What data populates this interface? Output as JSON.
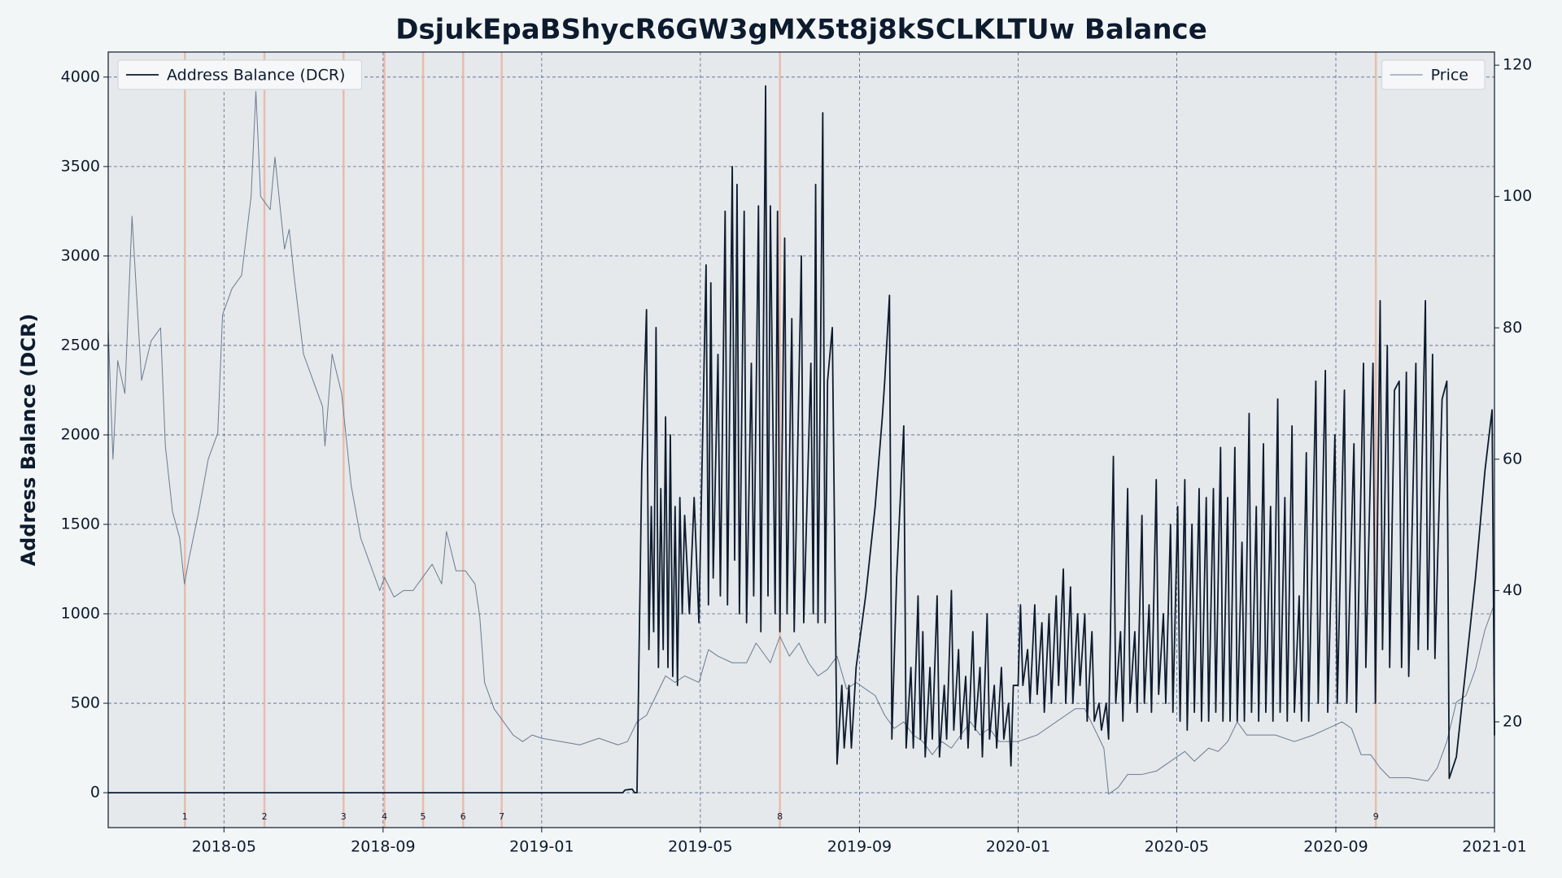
{
  "chart_data": {
    "type": "line",
    "title": "DsjukEpaBShycR6GW3gMX5t8j8kSCLKLTUw Balance",
    "ylabel": "Address Balance (DCR)",
    "xlim": [
      2018.09,
      2021.0
    ],
    "xticks": [
      {
        "value": 2018.333,
        "label": "2018-05"
      },
      {
        "value": 2018.667,
        "label": "2018-09"
      },
      {
        "value": 2019.0,
        "label": "2019-01"
      },
      {
        "value": 2019.333,
        "label": "2019-05"
      },
      {
        "value": 2019.667,
        "label": "2019-09"
      },
      {
        "value": 2020.0,
        "label": "2020-01"
      },
      {
        "value": 2020.333,
        "label": "2020-05"
      },
      {
        "value": 2020.667,
        "label": "2020-09"
      },
      {
        "value": 2021.0,
        "label": "2021-01"
      }
    ],
    "ylim": [
      -195,
      4140
    ],
    "yticks": [
      0,
      500,
      1000,
      1500,
      2000,
      2500,
      3000,
      3500,
      4000
    ],
    "y2lim": [
      3.9,
      122
    ],
    "y2ticks": [
      20,
      40,
      60,
      80,
      100,
      120
    ],
    "grid": true,
    "legend": "upper left",
    "legend2": "upper right",
    "events": [
      {
        "x": 2018.251,
        "label": "1"
      },
      {
        "x": 2018.418,
        "label": "2"
      },
      {
        "x": 2018.584,
        "label": "3"
      },
      {
        "x": 2018.67,
        "label": "4"
      },
      {
        "x": 2018.751,
        "label": "5"
      },
      {
        "x": 2018.835,
        "label": "6"
      },
      {
        "x": 2018.916,
        "label": "7"
      },
      {
        "x": 2019.5,
        "label": "8"
      },
      {
        "x": 2020.751,
        "label": "9"
      }
    ],
    "event_color": "#e9b8a6",
    "series": [
      {
        "name": "Address Balance (DCR)",
        "color": "#0d1b2e",
        "axis": "y",
        "x": [
          2018.09,
          2019.17,
          2019.175,
          2019.19,
          2019.195,
          2019.2,
          2019.21,
          2019.22,
          2019.225,
          2019.23,
          2019.235,
          2019.24,
          2019.245,
          2019.25,
          2019.255,
          2019.26,
          2019.265,
          2019.27,
          2019.275,
          2019.28,
          2019.285,
          2019.29,
          2019.295,
          2019.3,
          2019.31,
          2019.32,
          2019.33,
          2019.345,
          2019.35,
          2019.355,
          2019.36,
          2019.37,
          2019.375,
          2019.385,
          2019.39,
          2019.4,
          2019.405,
          2019.41,
          2019.415,
          2019.425,
          2019.43,
          2019.44,
          2019.445,
          2019.455,
          2019.46,
          2019.47,
          2019.475,
          2019.48,
          2019.49,
          2019.495,
          2019.5,
          2019.51,
          2019.515,
          2019.525,
          2019.53,
          2019.545,
          2019.55,
          2019.565,
          2019.57,
          2019.575,
          2019.58,
          2019.59,
          2019.595,
          2019.6,
          2019.61,
          2019.62,
          2019.63,
          2019.635,
          2019.645,
          2019.65,
          2019.66,
          2019.68,
          2019.7,
          2019.715,
          2019.72,
          2019.73,
          2019.735,
          2019.745,
          2019.76,
          2019.765,
          2019.775,
          2019.78,
          2019.79,
          2019.795,
          2019.8,
          2019.805,
          2019.815,
          2019.82,
          2019.83,
          2019.835,
          2019.845,
          2019.85,
          2019.86,
          2019.865,
          2019.875,
          2019.88,
          2019.89,
          2019.895,
          2019.905,
          2019.91,
          2019.92,
          2019.925,
          2019.935,
          2019.94,
          2019.95,
          2019.955,
          2019.965,
          2019.97,
          2019.98,
          2019.985,
          2019.99,
          2020,
          2020.005,
          2020.01,
          2020.02,
          2020.025,
          2020.035,
          2020.04,
          2020.05,
          2020.055,
          2020.065,
          2020.07,
          2020.08,
          2020.085,
          2020.095,
          2020.1,
          2020.11,
          2020.115,
          2020.125,
          2020.13,
          2020.14,
          2020.145,
          2020.155,
          2020.16,
          2020.17,
          2020.175,
          2020.185,
          2020.19,
          2020.2,
          2020.205,
          2020.215,
          2020.22,
          2020.23,
          2020.235,
          2020.245,
          2020.25,
          2020.26,
          2020.265,
          2020.275,
          2020.28,
          2020.29,
          2020.295,
          2020.305,
          2020.31,
          2020.32,
          2020.325,
          2020.335,
          2020.34,
          2020.35,
          2020.355,
          2020.365,
          2020.37,
          2020.38,
          2020.385,
          2020.395,
          2020.4,
          2020.41,
          2020.415,
          2020.425,
          2020.43,
          2020.44,
          2020.445,
          2020.455,
          2020.46,
          2020.47,
          2020.475,
          2020.485,
          2020.49,
          2020.5,
          2020.505,
          2020.515,
          2020.52,
          2020.53,
          2020.535,
          2020.545,
          2020.55,
          2020.56,
          2020.565,
          2020.575,
          2020.58,
          2020.59,
          2020.595,
          2020.605,
          2020.61,
          2020.625,
          2020.63,
          2020.645,
          2020.65,
          2020.665,
          2020.67,
          2020.685,
          2020.69,
          2020.705,
          2020.71,
          2020.725,
          2020.73,
          2020.745,
          2020.75,
          2020.76,
          2020.765,
          2020.775,
          2020.78,
          2020.79,
          2020.8,
          2020.805,
          2020.815,
          2020.82,
          2020.835,
          2020.84,
          2020.855,
          2020.86,
          2020.87,
          2020.875,
          2020.89,
          2020.9,
          2020.905,
          2020.92,
          2020.94,
          2020.96,
          2020.98,
          2020.995,
          2021
        ],
        "values": [
          0,
          0,
          15,
          20,
          0,
          0,
          1800,
          2700,
          800,
          1600,
          900,
          2600,
          700,
          1700,
          800,
          2100,
          700,
          2000,
          650,
          1600,
          600,
          1650,
          1000,
          1550,
          1000,
          1650,
          950,
          2950,
          1050,
          2850,
          1200,
          2450,
          1100,
          3250,
          1050,
          3500,
          1300,
          3400,
          1000,
          3250,
          950,
          2400,
          1100,
          3280,
          900,
          3950,
          1100,
          3280,
          1000,
          3250,
          900,
          3100,
          1000,
          2650,
          900,
          3000,
          950,
          2400,
          1000,
          3400,
          950,
          3800,
          950,
          2300,
          2600,
          160,
          600,
          250,
          600,
          250,
          700,
          1100,
          1600,
          2100,
          2300,
          2780,
          300,
          1200,
          2050,
          250,
          700,
          250,
          1100,
          300,
          900,
          200,
          700,
          300,
          1100,
          200,
          600,
          300,
          1130,
          350,
          800,
          300,
          650,
          250,
          900,
          350,
          700,
          200,
          1000,
          300,
          600,
          250,
          700,
          300,
          500,
          150,
          600,
          600,
          1050,
          600,
          800,
          500,
          1050,
          550,
          950,
          450,
          1000,
          500,
          1100,
          600,
          1250,
          500,
          1150,
          500,
          1000,
          600,
          1000,
          400,
          900,
          400,
          500,
          350,
          500,
          300,
          1880,
          500,
          900,
          400,
          1700,
          500,
          900,
          450,
          1550,
          500,
          1050,
          450,
          1750,
          550,
          1000,
          500,
          1500,
          450,
          1600,
          400,
          1750,
          350,
          1500,
          450,
          1700,
          400,
          1650,
          400,
          1700,
          450,
          1930,
          400,
          1650,
          400,
          1930,
          400,
          1400,
          400,
          2120,
          450,
          1600,
          400,
          1950,
          450,
          1600,
          400,
          2200,
          450,
          1650,
          400,
          2050,
          450,
          1100,
          400,
          1900,
          400,
          2300,
          500,
          2360,
          450,
          2000,
          500,
          2250,
          500,
          1950,
          450,
          2400,
          700,
          2400,
          500,
          2750,
          800,
          2500,
          700,
          2250,
          2300,
          700,
          2350,
          650,
          2400,
          800,
          2750,
          800,
          2450,
          750,
          2200,
          2300,
          80,
          200,
          700,
          1200,
          1800,
          2140,
          320
        ]
      },
      {
        "name": "Price",
        "color": "#6b7b8f",
        "axis": "y2",
        "x": [
          2018.09,
          2018.1,
          2018.11,
          2018.125,
          2018.14,
          2018.16,
          2018.18,
          2018.2,
          2018.21,
          2018.225,
          2018.24,
          2018.25,
          2018.26,
          2018.28,
          2018.3,
          2018.32,
          2018.33,
          2018.35,
          2018.37,
          2018.39,
          2018.4,
          2018.41,
          2018.43,
          2018.44,
          2018.46,
          2018.47,
          2018.48,
          2018.5,
          2018.52,
          2018.54,
          2018.545,
          2018.56,
          2018.58,
          2018.6,
          2018.62,
          2018.64,
          2018.66,
          2018.67,
          2018.69,
          2018.71,
          2018.73,
          2018.75,
          2018.77,
          2018.79,
          2018.8,
          2018.82,
          2018.84,
          2018.86,
          2018.87,
          2018.88,
          2018.9,
          2018.92,
          2018.94,
          2018.96,
          2018.98,
          2019,
          2019.04,
          2019.08,
          2019.12,
          2019.16,
          2019.18,
          2019.2,
          2019.22,
          2019.24,
          2019.26,
          2019.28,
          2019.3,
          2019.33,
          2019.35,
          2019.37,
          2019.4,
          2019.43,
          2019.45,
          2019.48,
          2019.5,
          2019.52,
          2019.54,
          2019.56,
          2019.58,
          2019.6,
          2019.62,
          2019.64,
          2019.66,
          2019.68,
          2019.7,
          2019.72,
          2019.74,
          2019.76,
          2019.78,
          2019.8,
          2019.82,
          2019.84,
          2019.86,
          2019.88,
          2019.9,
          2019.92,
          2019.94,
          2019.96,
          2020,
          2020.04,
          2020.08,
          2020.1,
          2020.12,
          2020.14,
          2020.16,
          2020.18,
          2020.19,
          2020.21,
          2020.23,
          2020.26,
          2020.29,
          2020.32,
          2020.35,
          2020.37,
          2020.4,
          2020.42,
          2020.44,
          2020.46,
          2020.48,
          2020.5,
          2020.54,
          2020.58,
          2020.62,
          2020.65,
          2020.68,
          2020.7,
          2020.72,
          2020.74,
          2020.76,
          2020.78,
          2020.82,
          2020.86,
          2020.88,
          2020.9,
          2020.92,
          2020.94,
          2020.96,
          2020.98,
          2021
        ],
        "values": [
          80,
          60,
          75,
          70,
          97,
          72,
          78,
          80,
          62,
          52,
          48,
          41,
          45,
          52,
          60,
          64,
          82,
          86,
          88,
          100,
          116,
          100,
          98,
          106,
          92,
          95,
          88,
          76,
          72,
          68,
          62,
          76,
          70,
          56,
          48,
          44,
          40,
          42,
          39,
          40,
          40,
          42,
          44,
          41,
          49,
          43,
          43,
          41,
          36,
          26,
          22,
          20,
          18,
          17,
          18,
          17.5,
          17,
          16.5,
          17.5,
          16.5,
          17,
          20,
          21,
          24,
          27,
          26,
          27,
          26,
          31,
          30,
          29,
          29,
          32,
          29,
          33,
          30,
          32,
          29,
          27,
          28,
          30,
          25,
          26,
          25,
          24,
          21,
          19,
          20,
          18,
          17,
          15,
          17,
          16,
          18,
          20,
          18,
          19,
          17,
          17,
          18,
          20,
          21,
          22,
          22,
          19,
          16,
          9,
          10,
          12,
          12,
          12.5,
          14,
          15.5,
          14,
          16,
          15.5,
          17,
          20,
          18,
          18,
          18,
          17,
          18,
          19,
          20,
          19,
          15,
          15,
          13,
          11.5,
          11.5,
          11,
          13,
          17,
          23,
          24,
          28,
          34,
          38
        ]
      }
    ]
  }
}
